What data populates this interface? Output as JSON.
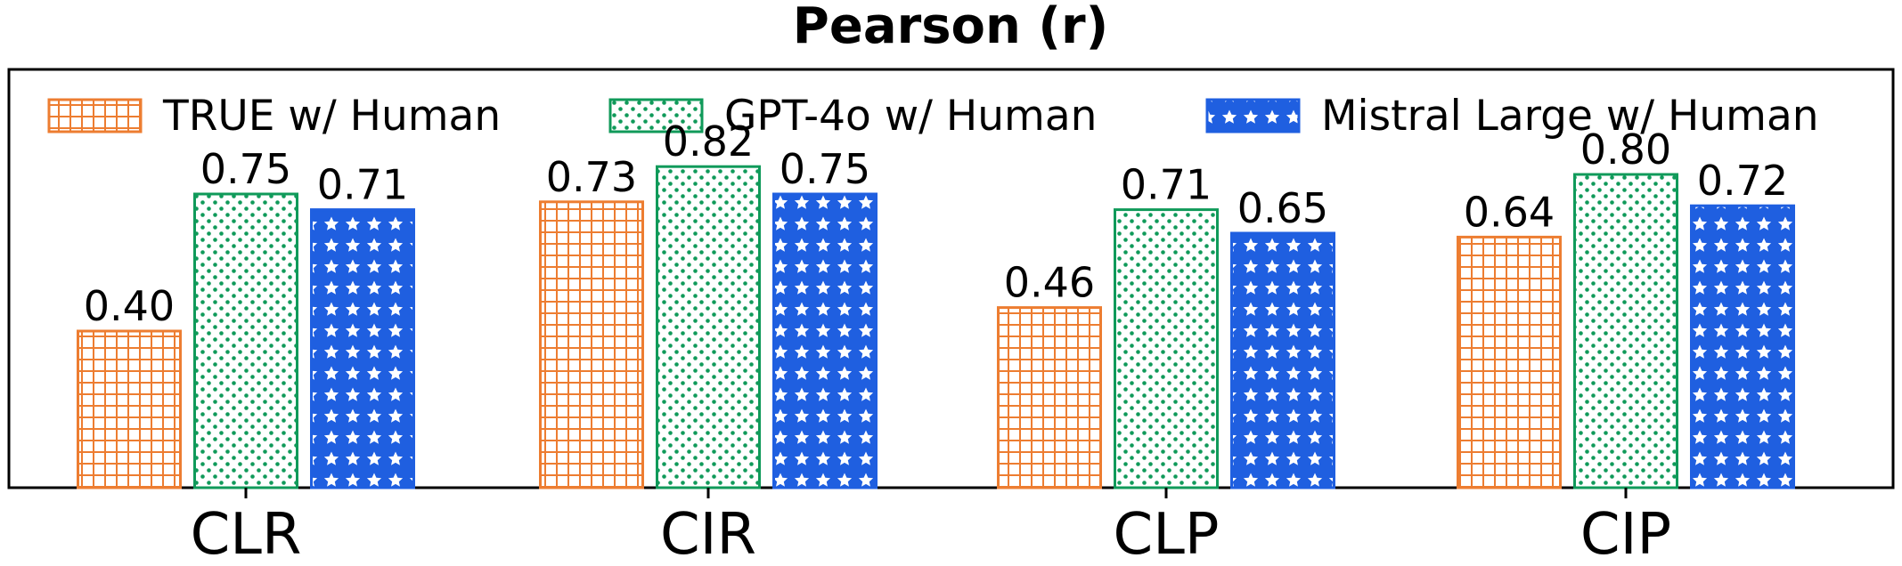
{
  "chart_data": {
    "type": "bar",
    "title": "Pearson (r)",
    "xlabel": "",
    "ylabel": "",
    "ylim": [
      0,
      1.0
    ],
    "categories": [
      "CLR",
      "CIR",
      "CLP",
      "CIP"
    ],
    "legend_position": "top",
    "series": [
      {
        "name": "TRUE w/ Human",
        "color": "#ED7D31",
        "pattern": "grid",
        "values": [
          0.4,
          0.73,
          0.46,
          0.64
        ],
        "labels": [
          "0.40",
          "0.73",
          "0.46",
          "0.64"
        ]
      },
      {
        "name": "GPT-4o w/ Human",
        "color": "#109A5A",
        "pattern": "dots",
        "values": [
          0.75,
          0.82,
          0.71,
          0.8
        ],
        "labels": [
          "0.75",
          "0.82",
          "0.71",
          "0.80"
        ]
      },
      {
        "name": "Mistral Large w/ Human",
        "color": "#1F5FE0",
        "pattern": "stars",
        "values": [
          0.71,
          0.75,
          0.65,
          0.72
        ],
        "labels": [
          "0.71",
          "0.75",
          "0.65",
          "0.72"
        ]
      }
    ]
  }
}
